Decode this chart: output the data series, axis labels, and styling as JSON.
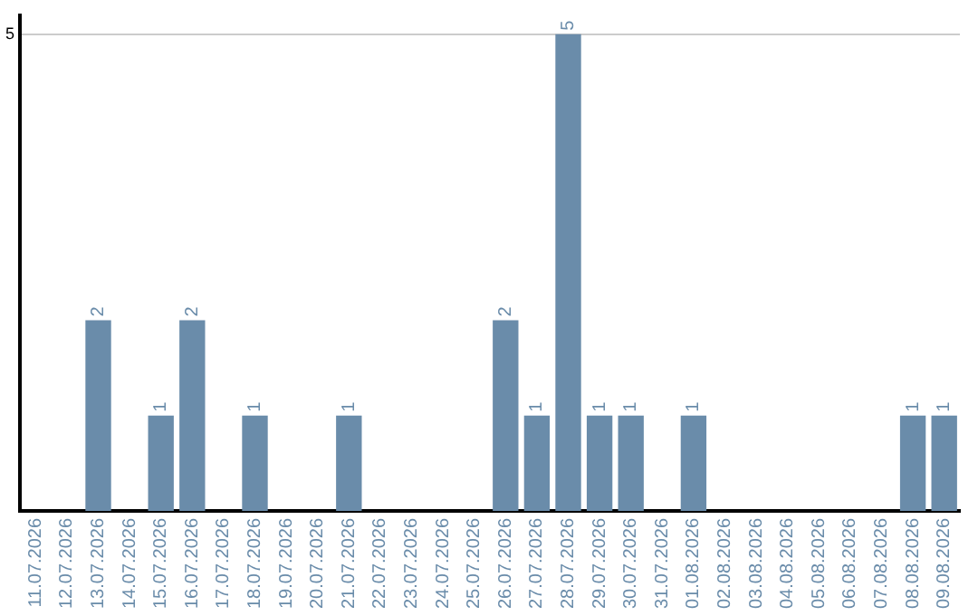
{
  "chart_data": {
    "type": "bar",
    "categories": [
      "11.07.2026",
      "12.07.2026",
      "13.07.2026",
      "14.07.2026",
      "15.07.2026",
      "16.07.2026",
      "17.07.2026",
      "18.07.2026",
      "19.07.2026",
      "20.07.2026",
      "21.07.2026",
      "22.07.2026",
      "23.07.2026",
      "24.07.2026",
      "25.07.2026",
      "26.07.2026",
      "27.07.2026",
      "28.07.2026",
      "29.07.2026",
      "30.07.2026",
      "31.07.2026",
      "01.08.2026",
      "02.08.2026",
      "03.08.2026",
      "04.08.2026",
      "05.08.2026",
      "06.08.2026",
      "07.08.2026",
      "08.08.2026",
      "09.08.2026"
    ],
    "values": [
      0,
      0,
      2,
      0,
      1,
      2,
      0,
      1,
      0,
      0,
      1,
      0,
      0,
      0,
      0,
      2,
      1,
      5,
      1,
      1,
      0,
      1,
      0,
      0,
      0,
      0,
      0,
      0,
      1,
      1
    ],
    "value_labels": [
      null,
      null,
      "2",
      null,
      "1",
      "2",
      null,
      "1",
      null,
      null,
      "1",
      null,
      null,
      null,
      null,
      "2",
      "1",
      "5",
      "1",
      "1",
      null,
      "1",
      null,
      null,
      null,
      null,
      null,
      null,
      "1",
      "1"
    ],
    "color": "#6a8caa",
    "ylim": [
      0,
      5.2
    ],
    "yticks": [
      5
    ],
    "grid": "y",
    "legend": false
  }
}
